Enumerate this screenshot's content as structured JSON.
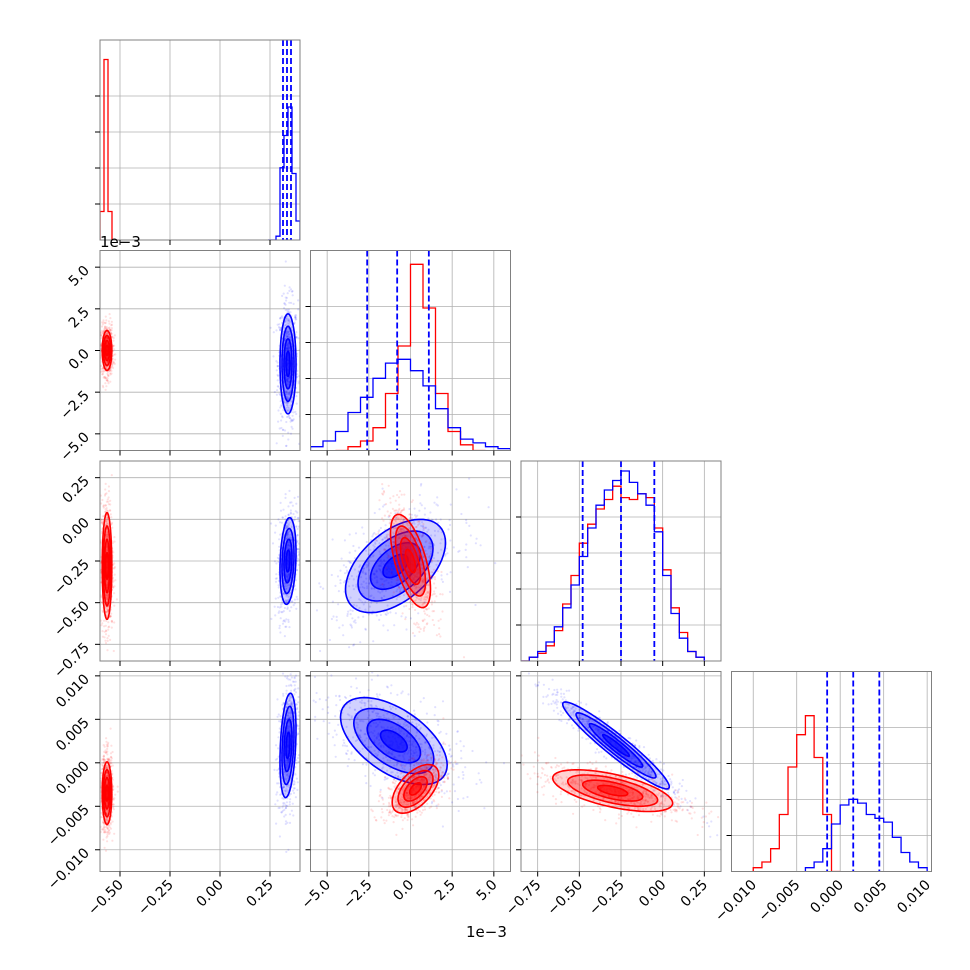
{
  "chart_data": {
    "type": "corner",
    "description_of_layout": "4x4 lower-triangular corner plot; diagonal panels are 1D histograms, off-diagonal panels are 2D density contours with scatter points",
    "colors": {
      "series_a": "#0000ff",
      "series_b": "#ff0000"
    },
    "scale_labels": {
      "panel_1_0_y": "1e−3",
      "bottom_x_param1": "1e−3"
    },
    "params": [
      {
        "ticks": [
          -0.5,
          -0.25,
          0.0,
          0.25
        ],
        "tick_labels": [
          "−0.50",
          "−0.25",
          "0.00",
          "0.25"
        ],
        "range": [
          -0.6,
          0.4
        ]
      },
      {
        "ticks": [
          -5.0,
          -2.5,
          0.0,
          2.5,
          5.0
        ],
        "tick_labels": [
          "−5.0",
          "−2.5",
          "0.0",
          "2.5",
          "5.0"
        ],
        "range": [
          -6.0,
          6.0
        ]
      },
      {
        "ticks": [
          -0.75,
          -0.5,
          -0.25,
          0.0,
          0.25
        ],
        "tick_labels": [
          "−0.75",
          "−0.50",
          "−0.25",
          "0.00",
          "0.25"
        ],
        "range": [
          -0.85,
          0.35
        ]
      },
      {
        "ticks": [
          -0.01,
          -0.005,
          0.0,
          0.005,
          0.01
        ],
        "tick_labels": [
          "−0.010",
          "−0.005",
          "0.000",
          "0.005",
          "0.010"
        ],
        "range": [
          -0.0125,
          0.0105
        ]
      }
    ],
    "quantile_lines_series_a": [
      [
        0.315,
        0.335,
        0.355
      ],
      [
        -2.6,
        -0.8,
        1.1
      ],
      [
        -0.48,
        -0.25,
        -0.05
      ],
      [
        -0.0015,
        0.0015,
        0.0045
      ]
    ],
    "histograms": [
      {
        "series_b": {
          "edges": [
            -0.6,
            -0.58,
            -0.56,
            -0.54,
            -0.52
          ],
          "counts": [
            0.15,
            0.95,
            0.15,
            0.0
          ]
        },
        "series_a": {
          "edges": [
            0.24,
            0.28,
            0.3,
            0.32,
            0.34,
            0.36,
            0.38,
            0.4
          ],
          "counts": [
            0.0,
            0.02,
            0.38,
            0.55,
            0.7,
            0.35,
            0.1
          ]
        }
      },
      {
        "series_b": {
          "edges": [
            -4.5,
            -3.75,
            -3.0,
            -2.25,
            -1.5,
            -0.75,
            0.0,
            0.75,
            1.5,
            2.25,
            3.0,
            3.75,
            4.5
          ],
          "counts": [
            0.0,
            0.02,
            0.05,
            0.12,
            0.3,
            0.55,
            0.98,
            0.75,
            0.3,
            0.1,
            0.03,
            0.0
          ]
        },
        "series_a": {
          "edges": [
            -6.0,
            -5.25,
            -4.5,
            -3.75,
            -3.0,
            -2.25,
            -1.5,
            -0.75,
            0.0,
            0.75,
            1.5,
            2.25,
            3.0,
            3.75,
            4.5,
            5.25,
            6.0
          ],
          "counts": [
            0.02,
            0.05,
            0.1,
            0.2,
            0.28,
            0.38,
            0.46,
            0.48,
            0.42,
            0.34,
            0.22,
            0.12,
            0.06,
            0.04,
            0.02,
            0.01
          ]
        }
      },
      {
        "series_b": {
          "edges": [
            -0.85,
            -0.8,
            -0.75,
            -0.7,
            -0.65,
            -0.6,
            -0.55,
            -0.5,
            -0.45,
            -0.4,
            -0.35,
            -0.3,
            -0.25,
            -0.2,
            -0.15,
            -0.1,
            -0.05,
            0.0,
            0.05,
            0.1,
            0.15,
            0.2,
            0.25
          ],
          "counts": [
            0.0,
            0.02,
            0.04,
            0.08,
            0.16,
            0.3,
            0.45,
            0.62,
            0.72,
            0.8,
            0.85,
            0.92,
            0.86,
            0.85,
            0.88,
            0.86,
            0.7,
            0.48,
            0.28,
            0.15,
            0.05,
            0.02
          ]
        },
        "series_a": {
          "edges": [
            -0.85,
            -0.8,
            -0.75,
            -0.7,
            -0.65,
            -0.6,
            -0.55,
            -0.5,
            -0.45,
            -0.4,
            -0.35,
            -0.3,
            -0.25,
            -0.2,
            -0.15,
            -0.1,
            -0.05,
            0.0,
            0.05,
            0.1,
            0.15,
            0.2,
            0.25
          ],
          "counts": [
            0.0,
            0.02,
            0.05,
            0.1,
            0.18,
            0.28,
            0.4,
            0.55,
            0.7,
            0.82,
            0.9,
            0.95,
            1.0,
            0.94,
            0.88,
            0.82,
            0.68,
            0.45,
            0.25,
            0.12,
            0.05,
            0.02
          ]
        }
      },
      {
        "series_b": {
          "edges": [
            -0.01,
            -0.009,
            -0.008,
            -0.007,
            -0.006,
            -0.005,
            -0.004,
            -0.003,
            -0.002,
            -0.001,
            0.0
          ],
          "counts": [
            0.02,
            0.05,
            0.12,
            0.3,
            0.55,
            0.72,
            0.82,
            0.6,
            0.3,
            0.0
          ]
        },
        "series_a": {
          "edges": [
            -0.004,
            -0.003,
            -0.002,
            -0.001,
            0.0,
            0.001,
            0.002,
            0.003,
            0.004,
            0.005,
            0.006,
            0.007,
            0.008,
            0.009,
            0.01
          ],
          "counts": [
            0.02,
            0.05,
            0.12,
            0.25,
            0.35,
            0.38,
            0.36,
            0.3,
            0.28,
            0.26,
            0.18,
            0.1,
            0.05,
            0.02
          ]
        }
      }
    ],
    "joint": [
      {
        "row": 1,
        "col": 0,
        "series_a": {
          "mean": [
            0.34,
            -0.8
          ],
          "std": [
            0.02,
            1.5
          ],
          "corr": 0.0
        },
        "series_b": {
          "mean": [
            -0.565,
            0.0
          ],
          "std": [
            0.012,
            0.6
          ],
          "corr": 0.0
        }
      },
      {
        "row": 2,
        "col": 0,
        "series_a": {
          "mean": [
            0.34,
            -0.25
          ],
          "std": [
            0.02,
            0.13
          ],
          "corr": 0.2
        },
        "series_b": {
          "mean": [
            -0.565,
            -0.28
          ],
          "std": [
            0.012,
            0.16
          ],
          "corr": 0.0
        }
      },
      {
        "row": 2,
        "col": 1,
        "series_a": {
          "mean": [
            -0.9,
            -0.28
          ],
          "std": [
            1.5,
            0.14
          ],
          "corr": 0.5
        },
        "series_b": {
          "mean": [
            0.0,
            -0.25
          ],
          "std": [
            0.6,
            0.14
          ],
          "corr": -0.6
        }
      },
      {
        "row": 3,
        "col": 0,
        "series_a": {
          "mean": [
            0.34,
            0.002
          ],
          "std": [
            0.02,
            0.003
          ],
          "corr": 0.3
        },
        "series_b": {
          "mean": [
            -0.565,
            -0.0035
          ],
          "std": [
            0.012,
            0.0018
          ],
          "corr": 0.0
        }
      },
      {
        "row": 3,
        "col": 1,
        "series_a": {
          "mean": [
            -1.0,
            0.0025
          ],
          "std": [
            1.6,
            0.0025
          ],
          "corr": -0.55
        },
        "series_b": {
          "mean": [
            0.3,
            -0.003
          ],
          "std": [
            0.7,
            0.0014
          ],
          "corr": 0.55
        }
      },
      {
        "row": 3,
        "col": 2,
        "series_a": {
          "mean": [
            -0.28,
            0.002
          ],
          "std": [
            0.16,
            0.0025
          ],
          "corr": -0.95
        },
        "series_b": {
          "mean": [
            -0.3,
            -0.0032
          ],
          "std": [
            0.18,
            0.0012
          ],
          "corr": -0.6
        }
      }
    ]
  }
}
